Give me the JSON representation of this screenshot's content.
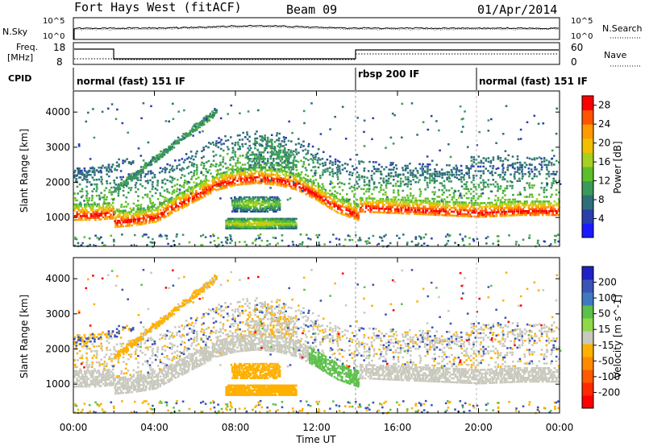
{
  "header": {
    "station": "Fort Hays West (fitACF)",
    "beam": "Beam 09",
    "date": "01/Apr/2014"
  },
  "top_strip": {
    "left_label": "N.Sky",
    "left_ticks": [
      "10^5",
      "10^0"
    ],
    "right_label": "N.Search",
    "right_ticks": [
      "10^5",
      "10^0"
    ]
  },
  "freq_strip": {
    "left_label_1": "Freq.",
    "left_label_2": "[MHz]",
    "left_ticks": [
      "18",
      "8"
    ],
    "right_label": "Nave",
    "right_ticks": [
      "60",
      "0"
    ]
  },
  "cpid_strip": {
    "label": "CPID",
    "modes": [
      "normal (fast) 151 IF",
      "rbsp 200 IF",
      "normal (fast) 151 IF"
    ]
  },
  "colors": {
    "power": [
      "#1a1aff",
      "#2a3fae",
      "#2e6f7a",
      "#3a9a5a",
      "#5cbf2a",
      "#a8d020",
      "#f0c000",
      "#ff9a00",
      "#ff5500",
      "#ff0000"
    ],
    "velocity_pos": [
      "#2020c8",
      "#3a55b8",
      "#3f7ac0",
      "#5cc04a",
      "#8fd84a"
    ],
    "velocity_mid": "#c8c8bc",
    "velocity_neg": [
      "#ffb000",
      "#ff8a00",
      "#ff5a00",
      "#ff2a00",
      "#ff0000"
    ]
  },
  "chart_data": [
    {
      "type": "heatmap",
      "title": "",
      "xlabel": "",
      "ylabel": "Slant Range [km]",
      "x_ticks": [
        "00:00",
        "04:00",
        "08:00",
        "12:00",
        "16:00",
        "20:00",
        "00:00"
      ],
      "y_ticks": [
        "1000",
        "2000",
        "3000",
        "4000"
      ],
      "colorbar_label": "Power [dB]",
      "colorbar_ticks": [
        "28",
        "24",
        "20",
        "16",
        "12",
        "8",
        "4"
      ],
      "colorbar_range": [
        0,
        30
      ],
      "x_range_hours": [
        0,
        24
      ],
      "y_range_km": [
        180,
        4600
      ],
      "ground_scatter": [
        {
          "hour": 0.0,
          "range_km": 1150
        },
        {
          "hour": 1.0,
          "range_km": 1150
        },
        {
          "hour": 1.99,
          "range_km": 1200
        },
        {
          "hour": 2.0,
          "range_km": 950
        },
        {
          "hour": 3.0,
          "range_km": 1000
        },
        {
          "hour": 4.0,
          "range_km": 1100
        },
        {
          "hour": 5.0,
          "range_km": 1400
        },
        {
          "hour": 6.0,
          "range_km": 1700
        },
        {
          "hour": 7.0,
          "range_km": 2000
        },
        {
          "hour": 8.0,
          "range_km": 2150
        },
        {
          "hour": 9.0,
          "range_km": 2200
        },
        {
          "hour": 10.0,
          "range_km": 2150
        },
        {
          "hour": 11.0,
          "range_km": 2000
        },
        {
          "hour": 12.0,
          "range_km": 1700
        },
        {
          "hour": 13.0,
          "range_km": 1350
        },
        {
          "hour": 14.0,
          "range_km": 1150
        },
        {
          "hour": 14.01,
          "range_km": 1350
        },
        {
          "hour": 16.0,
          "range_km": 1300
        },
        {
          "hour": 18.0,
          "range_km": 1250
        },
        {
          "hour": 20.0,
          "range_km": 1200
        },
        {
          "hour": 22.0,
          "range_km": 1250
        },
        {
          "hour": 24.0,
          "range_km": 1250
        }
      ]
    },
    {
      "type": "heatmap",
      "title": "",
      "xlabel": "Time UT",
      "ylabel": "Slant Range [km]",
      "x_ticks": [
        "00:00",
        "04:00",
        "08:00",
        "12:00",
        "16:00",
        "20:00",
        "00:00"
      ],
      "y_ticks": [
        "1000",
        "2000",
        "3000",
        "4000"
      ],
      "colorbar_label": "Velocity [m s^-1]",
      "colorbar_ticks": [
        "200",
        "100",
        "50",
        "15",
        "-15",
        "-50",
        "-100",
        "-200"
      ],
      "colorbar_range": [
        -250,
        250
      ],
      "x_range_hours": [
        0,
        24
      ],
      "y_range_km": [
        180,
        4600
      ]
    }
  ]
}
